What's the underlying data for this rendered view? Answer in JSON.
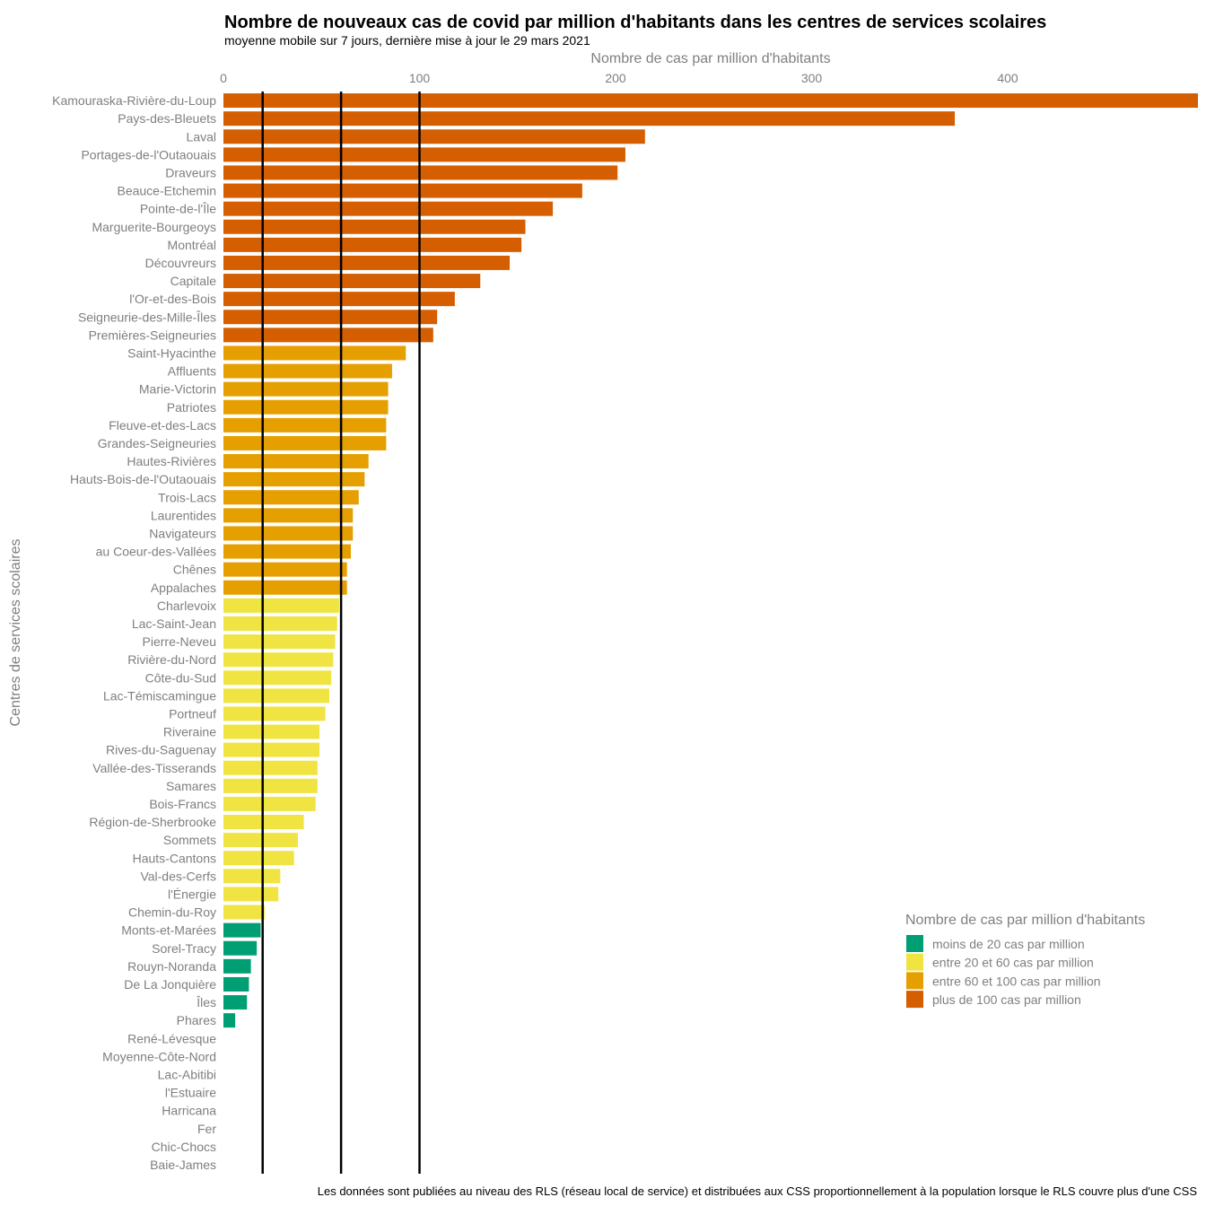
{
  "chart_data": {
    "type": "bar",
    "orientation": "horizontal",
    "title": "Nombre de nouveaux cas de covid par million d'habitants dans les centres de services scolaires",
    "subtitle": "moyenne mobile sur 7 jours, dernière mise à jour le 29 mars 2021",
    "xlabel": "Nombre de cas par million d'habitants",
    "ylabel": "Centres de services scolaires",
    "caption": "Les données sont publiées au niveau des RLS (réseau local de service) et distribuées aux CSS proportionnellement à la population lorsque le RLS couvre plus d'une CSS",
    "x_axis_position": "top",
    "xlim": [
      0,
      497
    ],
    "xticks": [
      0,
      100,
      200,
      300,
      400
    ],
    "reference_lines": [
      20,
      60,
      100
    ],
    "grid": false,
    "legend": {
      "title": "Nombre de cas par million d'habitants",
      "position": "bottom-right",
      "items": [
        {
          "label": "moins de 20 cas par million",
          "color": "#009E73"
        },
        {
          "label": "entre 20 et 60 cas par million",
          "color": "#F0E442"
        },
        {
          "label": "entre 60 et 100 cas par million",
          "color": "#E69F00"
        },
        {
          "label": "plus de 100 cas par million",
          "color": "#D55E00"
        }
      ]
    },
    "categories": [
      "Kamouraska-Rivière-du-Loup",
      "Pays-des-Bleuets",
      "Laval",
      "Portages-de-l'Outaouais",
      "Draveurs",
      "Beauce-Etchemin",
      "Pointe-de-l'Île",
      "Marguerite-Bourgeoys",
      "Montréal",
      "Découvreurs",
      "Capitale",
      "l'Or-et-des-Bois",
      "Seigneurie-des-Mille-Îles",
      "Premières-Seigneuries",
      "Saint-Hyacinthe",
      "Affluents",
      "Marie-Victorin",
      "Patriotes",
      "Fleuve-et-des-Lacs",
      "Grandes-Seigneuries",
      "Hautes-Rivières",
      "Hauts-Bois-de-l'Outaouais",
      "Trois-Lacs",
      "Laurentides",
      "Navigateurs",
      "au Coeur-des-Vallées",
      "Chênes",
      "Appalaches",
      "Charlevoix",
      "Lac-Saint-Jean",
      "Pierre-Neveu",
      "Rivière-du-Nord",
      "Côte-du-Sud",
      "Lac-Témiscamingue",
      "Portneuf",
      "Riveraine",
      "Rives-du-Saguenay",
      "Vallée-des-Tisserands",
      "Samares",
      "Bois-Francs",
      "Région-de-Sherbrooke",
      "Sommets",
      "Hauts-Cantons",
      "Val-des-Cerfs",
      "l'Énergie",
      "Chemin-du-Roy",
      "Monts-et-Marées",
      "Sorel-Tracy",
      "Rouyn-Noranda",
      "De La Jonquière",
      "Îles",
      "Phares",
      "René-Lévesque",
      "Moyenne-Côte-Nord",
      "Lac-Abitibi",
      "l'Estuaire",
      "Harricana",
      "Fer",
      "Chic-Chocs",
      "Baie-James"
    ],
    "values": [
      497,
      373,
      215,
      205,
      201,
      183,
      168,
      154,
      152,
      146,
      131,
      118,
      109,
      107,
      93,
      86,
      84,
      84,
      83,
      83,
      74,
      72,
      69,
      66,
      66,
      65,
      63,
      63,
      59,
      58,
      57,
      56,
      55,
      54,
      52,
      49,
      49,
      48,
      48,
      47,
      41,
      38,
      36,
      29,
      28,
      21,
      19,
      17,
      14,
      13,
      12,
      6,
      0,
      0,
      0,
      0,
      0,
      0,
      0,
      0
    ]
  }
}
